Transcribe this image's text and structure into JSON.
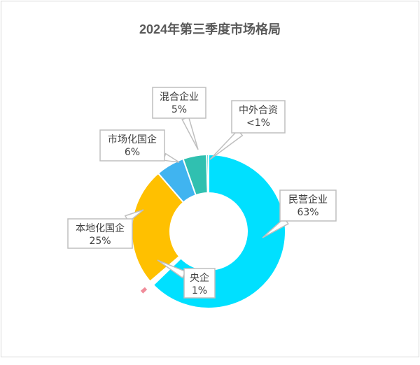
{
  "chart_data": {
    "type": "pie",
    "subtype": "doughnut",
    "title": "2024年第三季度市场格局",
    "slices": [
      {
        "label": "民营企业",
        "value_label": "63%",
        "value": 63,
        "color": "#00e0ff"
      },
      {
        "label": "央企",
        "value_label": "1%",
        "value": 1,
        "color": "#f08c9a"
      },
      {
        "label": "本地化国企",
        "value_label": "25%",
        "value": 25,
        "color": "#ffc000"
      },
      {
        "label": "市场化国企",
        "value_label": "6%",
        "value": 6,
        "color": "#40b4f0"
      },
      {
        "label": "混合企业",
        "value_label": "5%",
        "value": 5,
        "color": "#30c0b0"
      },
      {
        "label": "中外合资",
        "value_label": "<1%",
        "value": 0.4,
        "color": "#2ec4c0"
      }
    ],
    "legend": "none"
  }
}
